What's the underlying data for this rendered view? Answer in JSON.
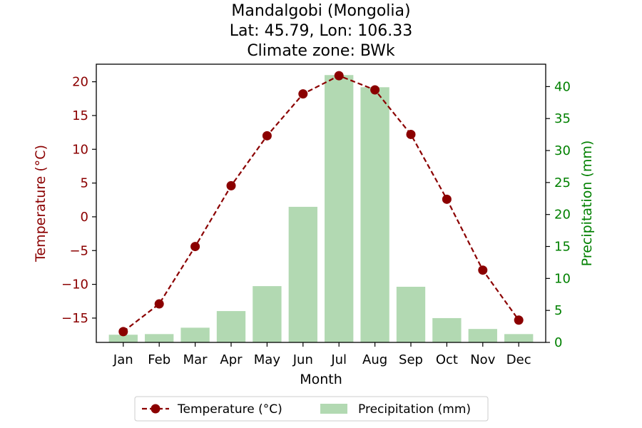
{
  "chart_data": {
    "type": "bar+line",
    "title_lines": [
      "Mandalgobi (Mongolia)",
      "Lat: 45.79, Lon: 106.33",
      "Climate zone: BWk"
    ],
    "xlabel": "Month",
    "categories": [
      "Jan",
      "Feb",
      "Mar",
      "Apr",
      "May",
      "Jun",
      "Jul",
      "Aug",
      "Sep",
      "Oct",
      "Nov",
      "Dec"
    ],
    "temperature": {
      "name": "Temperature (°C)",
      "axis": "left",
      "ylabel": "Temperature (°C)",
      "ylim": [
        -18.6,
        22.6
      ],
      "yticks": [
        -15,
        -10,
        -5,
        0,
        5,
        10,
        15,
        20
      ],
      "values": [
        -17.0,
        -12.9,
        -4.4,
        4.6,
        12.0,
        18.2,
        20.9,
        18.8,
        12.2,
        2.6,
        -7.9,
        -15.3
      ],
      "color": "#8b0000",
      "line_style": "dashed",
      "marker": "circle"
    },
    "precipitation": {
      "name": "Precipitation (mm)",
      "axis": "right",
      "ylabel": "Precipitation (mm)",
      "ylim": [
        0,
        43.5
      ],
      "yticks": [
        0,
        5,
        10,
        15,
        20,
        25,
        30,
        35,
        40
      ],
      "values": [
        1.2,
        1.3,
        2.3,
        4.9,
        8.8,
        21.2,
        41.8,
        39.9,
        8.7,
        3.8,
        2.1,
        1.3
      ],
      "color": "#b2d9b2"
    },
    "legend": {
      "placement": "bottom-center"
    },
    "grid": false
  }
}
